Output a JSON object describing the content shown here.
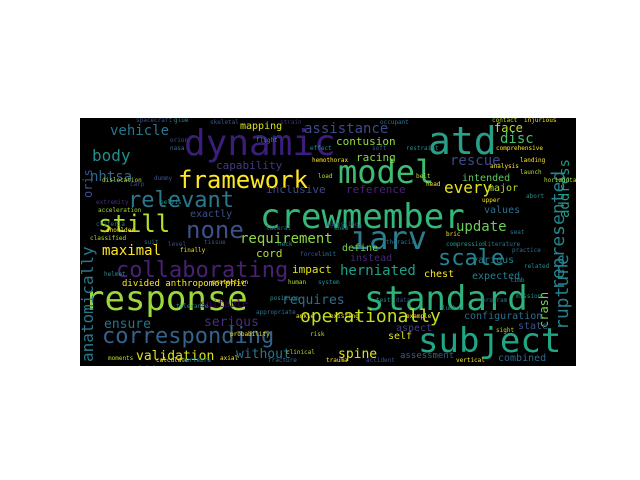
{
  "words": [
    {
      "text": "crewmember",
      "color": "#35b779"
    },
    {
      "text": "response",
      "color": "#9ad93c"
    },
    {
      "text": "standard",
      "color": "#2db27d"
    },
    {
      "text": "subject",
      "color": "#21a685"
    },
    {
      "text": "atd",
      "color": "#2a9f87"
    },
    {
      "text": "dynamic",
      "color": "#3b1d7a"
    },
    {
      "text": "model",
      "color": "#3fbc73"
    },
    {
      "text": "iarv",
      "color": "#2c7e8e"
    },
    {
      "text": "corresponding",
      "color": "#33638d"
    },
    {
      "text": "collaborating",
      "color": "#482173"
    },
    {
      "text": "framework",
      "color": "#fde725"
    },
    {
      "text": "still",
      "color": "#b5de2b"
    },
    {
      "text": "none",
      "color": "#3b518b"
    },
    {
      "text": "relevant",
      "color": "#2a788e"
    },
    {
      "text": "scale",
      "color": "#26828e"
    },
    {
      "text": "rupture",
      "color": "#277f8e"
    },
    {
      "text": "represented",
      "color": "#25848e"
    },
    {
      "text": "operationally",
      "color": "#c2df23"
    },
    {
      "text": "vehicle",
      "color": "#2a768e"
    },
    {
      "text": "assistance",
      "color": "#3e4989"
    },
    {
      "text": "body",
      "color": "#21908d"
    },
    {
      "text": "every",
      "color": "#e7e419"
    },
    {
      "text": "update",
      "color": "#6ccd5a"
    },
    {
      "text": "rescue",
      "color": "#3f4788"
    },
    {
      "text": "disc",
      "color": "#48c16e"
    },
    {
      "text": "address",
      "color": "#1f9a8a"
    },
    {
      "text": "nhtsa",
      "color": "#31678e"
    },
    {
      "text": "maximal",
      "color": "#fde725"
    },
    {
      "text": "herniated",
      "color": "#1fa088"
    },
    {
      "text": "requirement",
      "color": "#8fd744"
    },
    {
      "text": "validation",
      "color": "#dce319"
    },
    {
      "text": "spine",
      "color": "#e2e418"
    },
    {
      "text": "serious",
      "color": "#472d7b"
    },
    {
      "text": "ensure",
      "color": "#2c718e"
    },
    {
      "text": "anatomically",
      "color": "#29798e"
    },
    {
      "text": "requires",
      "color": "#2e6e8e"
    },
    {
      "text": "without",
      "color": "#2a768e"
    },
    {
      "text": "divided anthropomorphic",
      "color": "#fde725"
    },
    {
      "text": "configuration",
      "color": "#2e6e8e"
    },
    {
      "text": "crash",
      "color": "#7ad151"
    },
    {
      "text": "capability",
      "color": "#443983"
    },
    {
      "text": "mapping",
      "color": "#dde318"
    },
    {
      "text": "face",
      "color": "#b5de2b"
    },
    {
      "text": "contusion",
      "color": "#95d840"
    },
    {
      "text": "racing",
      "color": "#8bd646"
    },
    {
      "text": "intended",
      "color": "#5ec962"
    },
    {
      "text": "major",
      "color": "#b8de29"
    },
    {
      "text": "chest",
      "color": "#fde725"
    },
    {
      "text": "define",
      "color": "#84d44b"
    },
    {
      "text": "self",
      "color": "#dde318"
    },
    {
      "text": "impact",
      "color": "#e5e419"
    },
    {
      "text": "cord",
      "color": "#b2dd2d"
    },
    {
      "text": "aspect",
      "color": "#433e85"
    },
    {
      "text": "inclusive",
      "color": "#3e4a89"
    },
    {
      "text": "reference",
      "color": "#482475"
    },
    {
      "text": "expected",
      "color": "#287d8e"
    },
    {
      "text": "various",
      "color": "#27808e"
    },
    {
      "text": "values",
      "color": "#2d708e"
    },
    {
      "text": "state",
      "color": "#39558c"
    },
    {
      "text": "combined",
      "color": "#30698e"
    },
    {
      "text": "assessment",
      "color": "#355f8d"
    },
    {
      "text": "instead",
      "color": "#482878"
    },
    {
      "text": "exactly",
      "color": "#3b528b"
    },
    {
      "text": "suitable",
      "color": "#440154"
    },
    {
      "text": "oris",
      "color": "#3b528b"
    },
    {
      "text": "finally",
      "color": "#e5e419"
    },
    {
      "text": "axial",
      "color": "#fde725"
    },
    {
      "text": "existing",
      "color": "#fde725"
    },
    {
      "text": "acceleration",
      "color": "#a5db36"
    },
    {
      "text": "contact",
      "color": "#b5de2b"
    },
    {
      "text": "shoulder",
      "color": "#fde725"
    },
    {
      "text": "upper",
      "color": "#fde725"
    },
    {
      "text": "classified",
      "color": "#b5de2b"
    },
    {
      "text": "calculate",
      "color": "#fde725"
    },
    {
      "text": "appropriate",
      "color": "#2c728e"
    },
    {
      "text": "compression",
      "color": "#1f9e89"
    },
    {
      "text": "joint",
      "color": "#b5de2b"
    },
    {
      "text": "literature",
      "color": "#2c728e"
    },
    {
      "text": "related",
      "color": "#21918c"
    },
    {
      "text": "injurious",
      "color": "#fde725"
    },
    {
      "text": "dislocation",
      "color": "#b5de2b"
    },
    {
      "text": "moments",
      "color": "#b5de2b"
    },
    {
      "text": "egressing",
      "color": "#3b528b"
    },
    {
      "text": "lateral",
      "color": "#2c728e"
    },
    {
      "text": "example",
      "color": "#fde725"
    },
    {
      "text": "comprehensive",
      "color": "#fde725"
    },
    {
      "text": "hemothorax",
      "color": "#fde725"
    },
    {
      "text": "load",
      "color": "#b5de2b"
    },
    {
      "text": "bric",
      "color": "#fde725"
    },
    {
      "text": "seat",
      "color": "#2c728e"
    },
    {
      "text": "dummy",
      "color": "#3b528b"
    },
    {
      "text": "limb",
      "color": "#21918c"
    },
    {
      "text": "ankle",
      "color": "#fde725"
    },
    {
      "text": "skeletal",
      "color": "#3b528b"
    },
    {
      "text": "glue",
      "color": "#21918c"
    },
    {
      "text": "criteria",
      "color": "#2c728e"
    },
    {
      "text": "accident",
      "color": "#3b528b"
    },
    {
      "text": "extremity",
      "color": "#472d7b"
    },
    {
      "text": "carp",
      "color": "#3b528b"
    },
    {
      "text": "pelvis",
      "color": "#21918c"
    },
    {
      "text": "effect",
      "color": "#21918c"
    },
    {
      "text": "practice",
      "color": "#2c728e"
    },
    {
      "text": "sight",
      "color": "#b5de2b"
    },
    {
      "text": "position",
      "color": "#21918c"
    },
    {
      "text": "analysis",
      "color": "#fde725"
    },
    {
      "text": "level",
      "color": "#3b528b"
    },
    {
      "text": "neck",
      "color": "#21918c"
    },
    {
      "text": "tissue",
      "color": "#3b528b"
    },
    {
      "text": "thoracic",
      "color": "#2c728e"
    },
    {
      "text": "lumbar",
      "color": "#21918c"
    },
    {
      "text": "clinical",
      "color": "#b5de2b"
    },
    {
      "text": "trauma",
      "color": "#fde725"
    },
    {
      "text": "fracture",
      "color": "#2c728e"
    },
    {
      "text": "vertebra",
      "color": "#21918c"
    },
    {
      "text": "soft",
      "color": "#3b528b"
    },
    {
      "text": "strain",
      "color": "#472d7b"
    },
    {
      "text": "occupant",
      "color": "#2c728e"
    },
    {
      "text": "restraint",
      "color": "#21918c"
    },
    {
      "text": "belt",
      "color": "#b5de2b"
    },
    {
      "text": "head",
      "color": "#fde725"
    },
    {
      "text": "knee",
      "color": "#21918c"
    },
    {
      "text": "force",
      "color": "#3b528b"
    },
    {
      "text": "limit",
      "color": "#2c728e"
    },
    {
      "text": "tolerance",
      "color": "#21918c"
    },
    {
      "text": "probability",
      "color": "#fde725"
    },
    {
      "text": "risk",
      "color": "#b5de2b"
    },
    {
      "text": "test",
      "color": "#21918c"
    },
    {
      "text": "data",
      "color": "#3b528b"
    },
    {
      "text": "program",
      "color": "#2c728e"
    },
    {
      "text": "mission",
      "color": "#21918c"
    },
    {
      "text": "landing",
      "color": "#fde725"
    },
    {
      "text": "launch",
      "color": "#b5de2b"
    },
    {
      "text": "abort",
      "color": "#21918c"
    },
    {
      "text": "spacecraft",
      "color": "#3b528b"
    },
    {
      "text": "suit",
      "color": "#2c728e"
    },
    {
      "text": "helmet",
      "color": "#21918c"
    },
    {
      "text": "protection",
      "color": "#fde725"
    },
    {
      "text": "human",
      "color": "#b5de2b"
    },
    {
      "text": "system",
      "color": "#21918c"
    },
    {
      "text": "orion",
      "color": "#3b528b"
    },
    {
      "text": "nasa",
      "color": "#2c728e"
    },
    {
      "text": "flight",
      "color": "#21918c"
    },
    {
      "text": "vertical",
      "color": "#fde725"
    },
    {
      "text": "horizontal",
      "color": "#b5de2b"
    }
  ]
}
